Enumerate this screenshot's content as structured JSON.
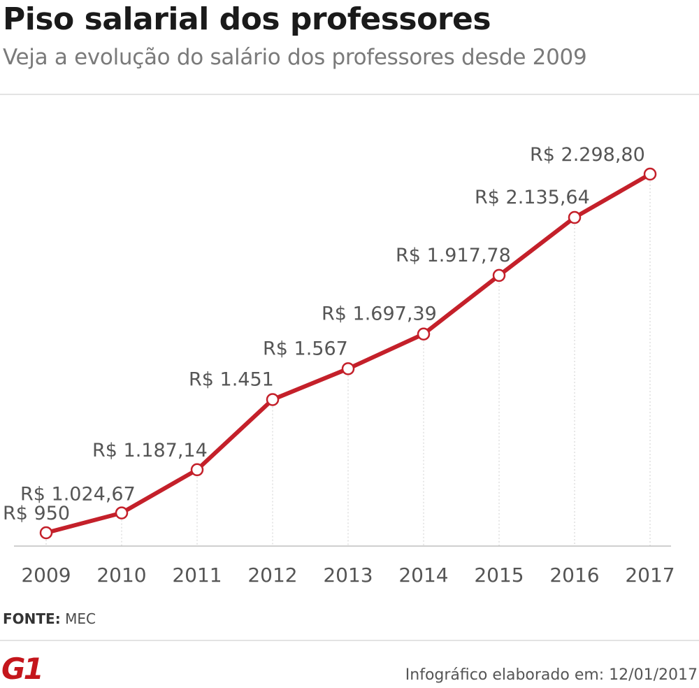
{
  "title": "Piso salarial dos professores",
  "subtitle": "Veja a evolução do salário dos professores desde 2009",
  "source": {
    "label": "FONTE:",
    "value": "MEC"
  },
  "logo_text": "G1",
  "footer": "Infográfico elaborado em: 12/01/2017",
  "colors": {
    "line": "#c4202a",
    "text": "#555555",
    "axis": "#bfbfbf",
    "logo": "#c4161c"
  },
  "chart_data": {
    "type": "line",
    "title": "Piso salarial dos professores",
    "subtitle": "Veja a evolução do salário dos professores desde 2009",
    "xlabel": "",
    "ylabel": "",
    "grid": "vertical dotted lines",
    "legend": "none",
    "ylim": [
      800,
      2400
    ],
    "categories": [
      "2009",
      "2010",
      "2011",
      "2012",
      "2013",
      "2014",
      "2015",
      "2016",
      "2017"
    ],
    "series": [
      {
        "values": [
          950,
          1024.67,
          1187.14,
          1451,
          1567,
          1697.39,
          1917.78,
          2135.64,
          2298.8
        ],
        "labels": [
          "R$ 950",
          "R$ 1.024,67",
          "R$ 1.187,14",
          "R$ 1.451",
          "R$ 1.567",
          "R$ 1.697,39",
          "R$ 1.917,78",
          "R$ 2.135,64",
          "R$ 2.298,80"
        ]
      }
    ]
  }
}
